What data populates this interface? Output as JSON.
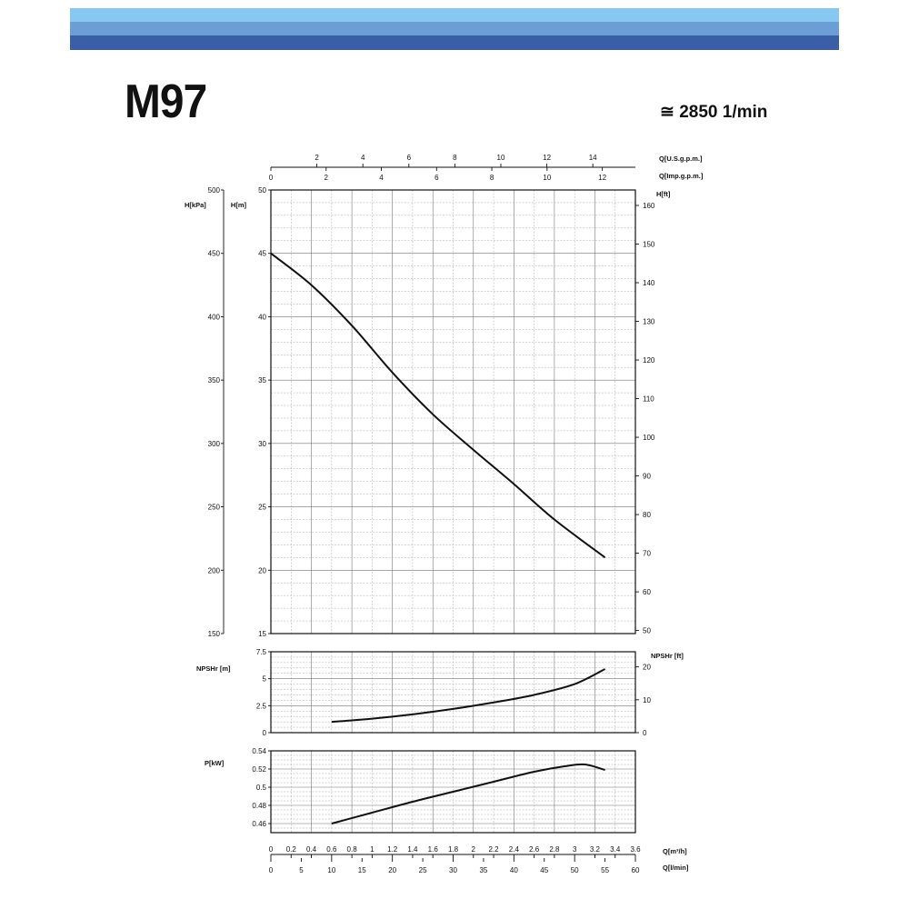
{
  "header": {
    "model": "M97",
    "speed_symbol": "≅",
    "speed": "2850 1/min"
  },
  "chart_data": [
    {
      "type": "line",
      "id": "head",
      "x": [
        0,
        0.4,
        0.8,
        1.2,
        1.6,
        2.0,
        2.4,
        2.8,
        3.3
      ],
      "y": [
        45,
        42.5,
        39.3,
        35.6,
        32.3,
        29.5,
        26.8,
        24.0,
        21.0
      ],
      "xlim": [
        0,
        3.6
      ],
      "ylim": [
        15,
        50
      ],
      "yticks": [
        15,
        20,
        25,
        30,
        35,
        40,
        45,
        50
      ],
      "ylabel": "H[m]",
      "left_axis": {
        "label": "H[kPa]",
        "ticks": [
          150,
          200,
          250,
          300,
          350,
          400,
          450,
          500
        ],
        "min": 150,
        "max": 500
      },
      "right_axis": {
        "label": "H[ft]",
        "ticks": [
          50,
          60,
          70,
          80,
          90,
          100,
          110,
          120,
          130,
          140,
          150,
          160
        ],
        "min": 49.2,
        "max": 164.0
      },
      "top_axis_usgpm": {
        "label": "Q[U.S.g.p.m.]",
        "ticks": [
          2,
          4,
          6,
          8,
          10,
          12,
          14
        ],
        "per_m3h": 4.403
      },
      "top_axis_impgpm": {
        "label": "Q[Imp.g.p.m.]",
        "ticks": [
          0,
          2,
          4,
          6,
          8,
          10,
          12
        ],
        "per_m3h": 3.666
      },
      "grid": true
    },
    {
      "type": "line",
      "id": "npsh",
      "x": [
        0.6,
        1.0,
        1.4,
        1.8,
        2.2,
        2.6,
        3.0,
        3.3
      ],
      "y": [
        1.0,
        1.3,
        1.7,
        2.2,
        2.8,
        3.5,
        4.5,
        5.9
      ],
      "xlim": [
        0,
        3.6
      ],
      "ylim": [
        0,
        7.5
      ],
      "yticks": [
        0,
        2.5,
        5,
        7.5
      ],
      "ylabel": "NPSHr [m]",
      "right_axis": {
        "label": "NPSHr [ft]",
        "ticks": [
          0,
          10,
          20
        ],
        "min": 0,
        "max": 24.6
      },
      "grid": true
    },
    {
      "type": "line",
      "id": "power",
      "x": [
        0.6,
        1.0,
        1.4,
        1.8,
        2.2,
        2.6,
        2.9,
        3.1,
        3.3
      ],
      "y": [
        0.46,
        0.472,
        0.484,
        0.495,
        0.506,
        0.517,
        0.523,
        0.525,
        0.519
      ],
      "xlim": [
        0,
        3.6
      ],
      "ylim": [
        0.45,
        0.54
      ],
      "yticks": [
        0.46,
        0.48,
        0.5,
        0.52,
        0.54
      ],
      "ylabel": "P[kW]",
      "grid": true
    }
  ],
  "bottom_axes": {
    "m3h": {
      "label": "Q[m³/h]",
      "ticks": [
        "0",
        "0.2",
        "0.4",
        "0.6",
        "0.8",
        "1",
        "1.2",
        "1.4",
        "1.6",
        "1.8",
        "2",
        "2.2",
        "2.4",
        "2.6",
        "2.8",
        "3",
        "3.2",
        "3.4",
        "3.6"
      ]
    },
    "lmin": {
      "label": "Q[l/min]",
      "ticks": [
        0,
        5,
        10,
        15,
        20,
        25,
        30,
        35,
        40,
        45,
        50,
        55,
        60
      ]
    }
  }
}
